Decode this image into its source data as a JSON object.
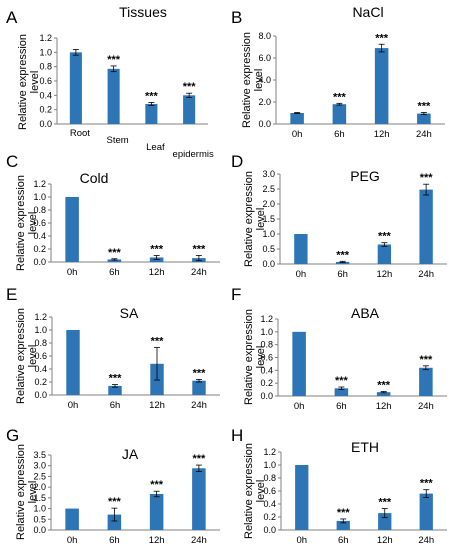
{
  "colors": {
    "bar": "#2e75b6",
    "axis": "#808080",
    "error": "#000000"
  },
  "chart_data": [
    {
      "panel": "A",
      "type": "bar",
      "title": "Tissues",
      "ylabel": "Relative expression level",
      "categories": [
        "Root",
        "Stem",
        "Leaf",
        "epidermis"
      ],
      "values": [
        1.0,
        0.77,
        0.28,
        0.4
      ],
      "errors": [
        0.04,
        0.04,
        0.02,
        0.03
      ],
      "significance": [
        "",
        "***",
        "***",
        "***"
      ],
      "ylim": [
        0,
        1.2
      ],
      "yticks": [
        "0.0",
        "0.2",
        "0.4",
        "0.6",
        "0.8",
        "1.0",
        "1.2"
      ]
    },
    {
      "panel": "B",
      "type": "bar",
      "title": "NaCl",
      "ylabel": "Relative expression level",
      "categories": [
        "0h",
        "6h",
        "12h",
        "24h"
      ],
      "values": [
        1.0,
        1.8,
        6.9,
        0.95
      ],
      "errors": [
        0.05,
        0.08,
        0.35,
        0.1
      ],
      "significance": [
        "",
        "***",
        "***",
        "***"
      ],
      "ylim": [
        0,
        8
      ],
      "yticks": [
        "0.0",
        "2.0",
        "4.0",
        "6.0",
        "8.0"
      ]
    },
    {
      "panel": "C",
      "type": "bar",
      "title": "Cold",
      "ylabel": "Relative expression level",
      "categories": [
        "0h",
        "6h",
        "12h",
        "24h"
      ],
      "values": [
        1.0,
        0.04,
        0.07,
        0.06
      ],
      "errors": [
        0.0,
        0.01,
        0.03,
        0.04
      ],
      "significance": [
        "",
        "***",
        "***",
        "***"
      ],
      "ylim": [
        0,
        1.2
      ],
      "yticks": [
        "0.0",
        "0.2",
        "0.4",
        "0.6",
        "0.8",
        "1.0",
        "1.2"
      ]
    },
    {
      "panel": "D",
      "type": "bar",
      "title": "PEG",
      "ylabel": "Relative expression level",
      "categories": [
        "0h",
        "6h",
        "12h",
        "24h"
      ],
      "values": [
        1.0,
        0.07,
        0.65,
        2.48
      ],
      "errors": [
        0.0,
        0.02,
        0.06,
        0.18
      ],
      "significance": [
        "",
        "***",
        "***",
        "***"
      ],
      "ylim": [
        0,
        3.0
      ],
      "yticks": [
        "0.0",
        "0.5",
        "1.0",
        "1.5",
        "2.0",
        "2.5",
        "3.0"
      ]
    },
    {
      "panel": "E",
      "type": "bar",
      "title": "SA",
      "ylabel": "Relative expression level",
      "categories": [
        "0h",
        "6h",
        "12h",
        "24h"
      ],
      "values": [
        1.0,
        0.14,
        0.48,
        0.22
      ],
      "errors": [
        0.0,
        0.02,
        0.25,
        0.02
      ],
      "significance": [
        "",
        "***",
        "***",
        "***"
      ],
      "ylim": [
        0,
        1.2
      ],
      "yticks": [
        "0.0",
        "0.2",
        "0.4",
        "0.6",
        "0.8",
        "1.0",
        "1.2"
      ]
    },
    {
      "panel": "F",
      "type": "bar",
      "title": "ABA",
      "ylabel": "Relative expression level",
      "categories": [
        "0h",
        "6h",
        "12h",
        "24h"
      ],
      "values": [
        1.0,
        0.12,
        0.06,
        0.44
      ],
      "errors": [
        0.0,
        0.02,
        0.01,
        0.03
      ],
      "significance": [
        "",
        "***",
        "***",
        "***"
      ],
      "ylim": [
        0,
        1.2
      ],
      "yticks": [
        "0.0",
        "0.2",
        "0.4",
        "0.6",
        "0.8",
        "1.0",
        "1.2"
      ]
    },
    {
      "panel": "G",
      "type": "bar",
      "title": "JA",
      "ylabel": "Relative expression level",
      "categories": [
        "0h",
        "6h",
        "12h",
        "24h"
      ],
      "values": [
        1.0,
        0.72,
        1.68,
        2.88
      ],
      "errors": [
        0.0,
        0.3,
        0.13,
        0.15
      ],
      "significance": [
        "",
        "***",
        "***",
        "***"
      ],
      "ylim": [
        0,
        3.5
      ],
      "yticks": [
        "0.0",
        "0.5",
        "1.0",
        "1.5",
        "2.0",
        "2.5",
        "3.0",
        "3.5"
      ]
    },
    {
      "panel": "H",
      "type": "bar",
      "title": "ETH",
      "ylabel": "Relative expression level",
      "categories": [
        "0h",
        "6h",
        "12h",
        "24h"
      ],
      "values": [
        1.0,
        0.14,
        0.26,
        0.56
      ],
      "errors": [
        0.0,
        0.03,
        0.07,
        0.06
      ],
      "significance": [
        "",
        "***",
        "***",
        "***"
      ],
      "ylim": [
        0,
        1.2
      ],
      "yticks": [
        "0.0",
        "0.2",
        "0.4",
        "0.6",
        "0.8",
        "1.0",
        "1.2"
      ]
    }
  ]
}
